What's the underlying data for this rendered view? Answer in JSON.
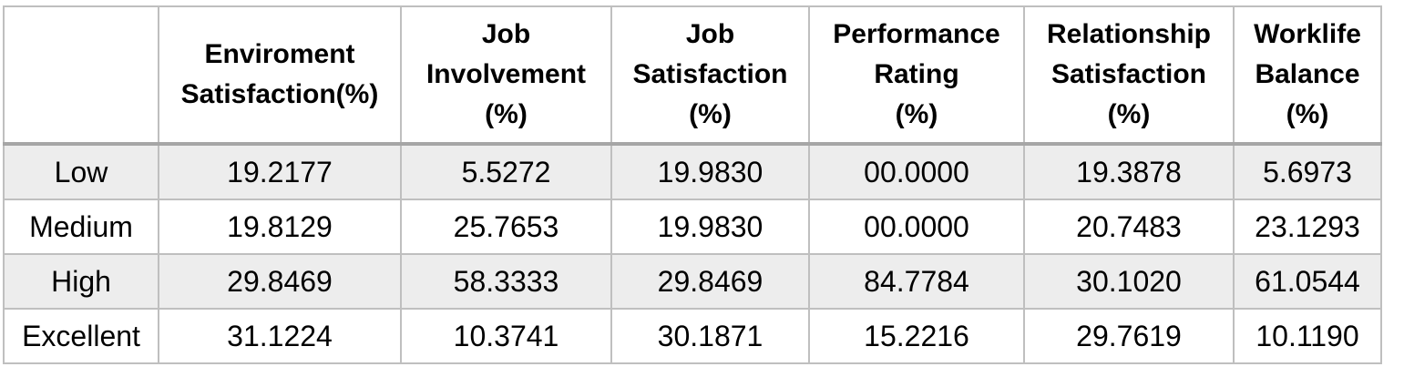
{
  "table": {
    "corner": "",
    "headers": [
      "Enviroment\nSatisfaction(%)",
      "Job\nInvolvement\n(%)",
      "Job\nSatisfaction\n(%)",
      "Performance\nRating\n(%)",
      "Relationship\nSatisfaction\n(%)",
      "Worklife\nBalance\n(%)"
    ],
    "rows": [
      {
        "label": "Low",
        "cells": [
          "19.2177",
          "5.5272",
          "19.9830",
          "00.0000",
          "19.3878",
          "5.6973"
        ]
      },
      {
        "label": "Medium",
        "cells": [
          "19.8129",
          "25.7653",
          "19.9830",
          "00.0000",
          "20.7483",
          "23.1293"
        ]
      },
      {
        "label": "High",
        "cells": [
          "29.8469",
          "58.3333",
          "29.8469",
          "84.7784",
          "30.1020",
          "61.0544"
        ]
      },
      {
        "label": "Excellent",
        "cells": [
          "31.1224",
          "10.3741",
          "30.1871",
          "15.2216",
          "29.7619",
          "10.1190"
        ]
      }
    ]
  },
  "colors": {
    "border": "#bfbfbf",
    "header_rule": "#a6a6a6",
    "shaded_row": "#ededed"
  }
}
